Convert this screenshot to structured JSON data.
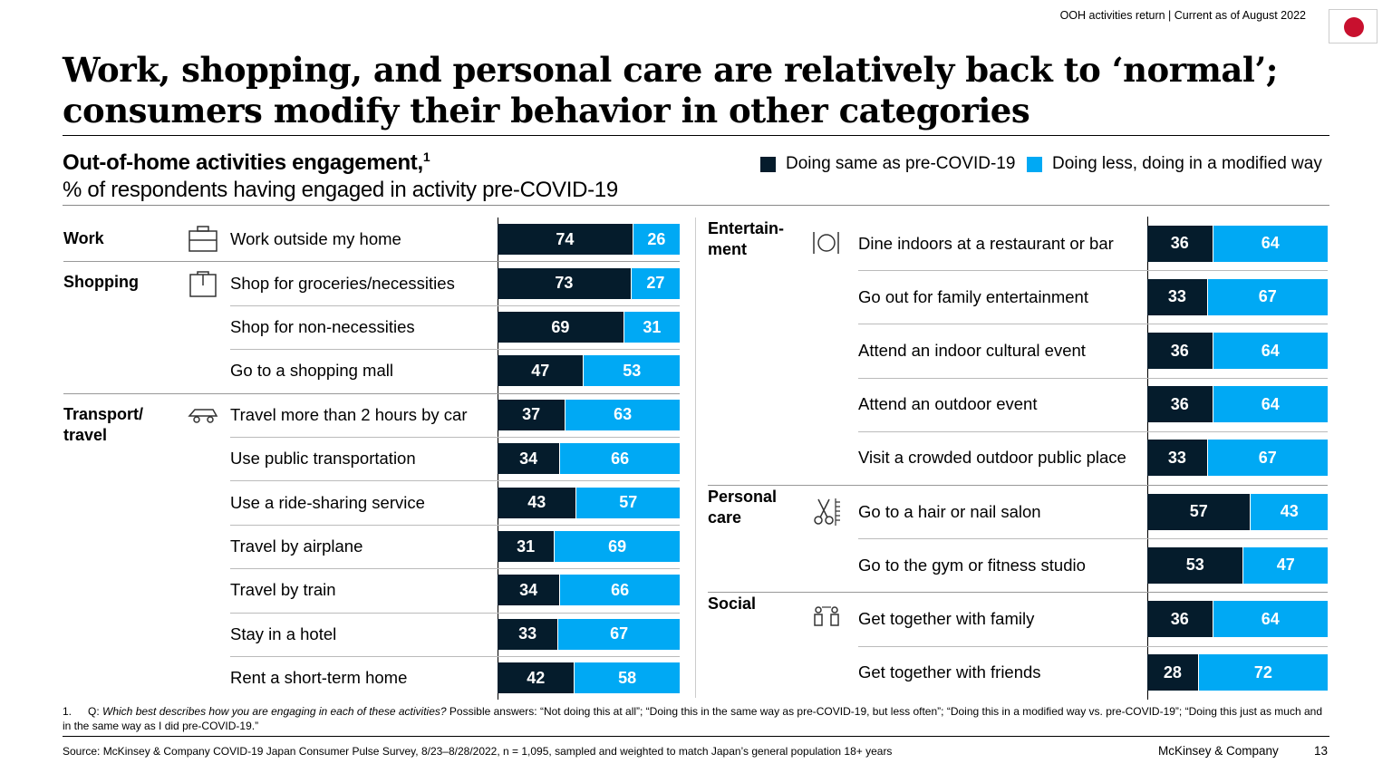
{
  "header": {
    "tracker": "OOH activities return | Current as of August 2022",
    "flag": "Japan flag"
  },
  "title": "Work, shopping, and personal care are relatively back to ‘normal’; consumers modify their behavior in other categories",
  "subtitle": "Out-of-home activities engagement,",
  "subtitle_sup": "1",
  "subtitle2": "% of respondents having engaged in activity pre-COVID-19",
  "colors": {
    "same": "#051c2c",
    "less": "#00a9f4"
  },
  "chart_data": {
    "type": "bar",
    "stacked": true,
    "horizontal": true,
    "xlim": [
      0,
      100
    ],
    "legend_position": "top-right",
    "series_names": [
      "Doing same as pre-COVID-19",
      "Doing less, doing in a modified way"
    ],
    "panels": [
      {
        "groups": [
          {
            "category": "Work",
            "icon": "briefcase-icon",
            "items": [
              {
                "label": "Work outside my home",
                "same": 74,
                "less": 26
              }
            ]
          },
          {
            "category": "Shopping",
            "icon": "shopping-bag-icon",
            "items": [
              {
                "label": "Shop for groceries/necessities",
                "same": 73,
                "less": 27
              },
              {
                "label": "Shop for non-necessities",
                "same": 69,
                "less": 31
              },
              {
                "label": "Go to a shopping mall",
                "same": 47,
                "less": 53
              }
            ]
          },
          {
            "category": "Transport/ travel",
            "icon": "car-icon",
            "items": [
              {
                "label": "Travel more than 2 hours by car",
                "same": 37,
                "less": 63
              },
              {
                "label": "Use public transportation",
                "same": 34,
                "less": 66
              },
              {
                "label": "Use a ride-sharing service",
                "same": 43,
                "less": 57
              },
              {
                "label": "Travel by airplane",
                "same": 31,
                "less": 69
              },
              {
                "label": "Travel by train",
                "same": 34,
                "less": 66
              },
              {
                "label": "Stay in a hotel",
                "same": 33,
                "less": 67
              },
              {
                "label": "Rent a short-term home",
                "same": 42,
                "less": 58
              }
            ]
          }
        ]
      },
      {
        "groups": [
          {
            "category": "Entertain- ment",
            "icon": "dining-icon",
            "items": [
              {
                "label": "Dine indoors at a restaurant or bar",
                "same": 36,
                "less": 64
              },
              {
                "label": "Go out for family entertainment",
                "same": 33,
                "less": 67
              },
              {
                "label": "Attend an indoor cultural event",
                "same": 36,
                "less": 64
              },
              {
                "label": "Attend an outdoor event",
                "same": 36,
                "less": 64
              },
              {
                "label": "Visit a crowded outdoor public place",
                "same": 33,
                "less": 67
              }
            ]
          },
          {
            "category": "Personal care",
            "icon": "scissors-comb-icon",
            "items": [
              {
                "label": "Go to a hair or nail salon",
                "same": 57,
                "less": 43
              },
              {
                "label": "Go to the gym or fitness studio",
                "same": 53,
                "less": 47
              }
            ]
          },
          {
            "category": "Social",
            "icon": "people-icon",
            "items": [
              {
                "label": "Get together with family",
                "same": 36,
                "less": 64
              },
              {
                "label": "Get together with friends",
                "same": 28,
                "less": 72
              }
            ]
          }
        ]
      }
    ]
  },
  "footnote": {
    "num": "1.",
    "q": "Q:",
    "question": "Which best describes how you are engaging in each of these activities?",
    "answers": "Possible answers: “Not doing this at all”; “Doing this in the same way as pre-COVID-19, but less often”; “Doing this in a modified way vs. pre-COVID-19”; “Doing this just as much and in the same way as I did pre-COVID-19.”"
  },
  "source": "Source: McKinsey & Company COVID-19 Japan Consumer Pulse Survey, 8/23–8/28/2022, n = 1,095, sampled and weighted to match Japan’s general population 18+ years",
  "brand": "McKinsey & Company",
  "page": "13"
}
